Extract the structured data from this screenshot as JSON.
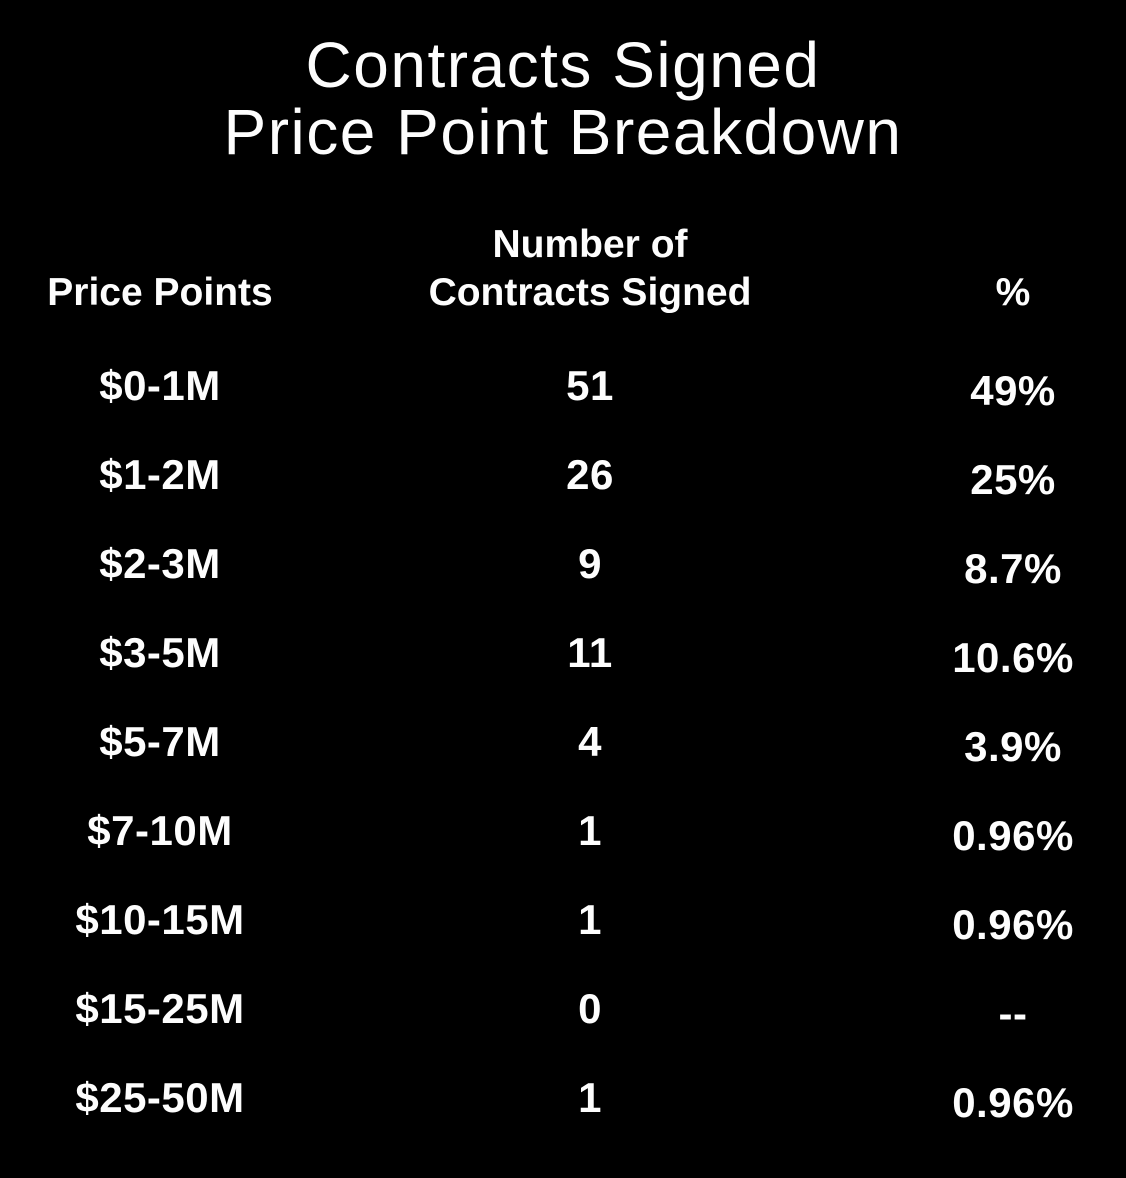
{
  "title": {
    "line1": "Contracts Signed",
    "line2": "Price Point Breakdown"
  },
  "table": {
    "header": {
      "price_points": "Price Points",
      "contracts_line1": "Number of",
      "contracts_line2": "Contracts Signed",
      "percent": "%"
    },
    "rows": [
      {
        "price_point": "$0-1M",
        "contracts": "51",
        "pct": "49%"
      },
      {
        "price_point": "$1-2M",
        "contracts": "26",
        "pct": "25%"
      },
      {
        "price_point": "$2-3M",
        "contracts": "9",
        "pct": "8.7%"
      },
      {
        "price_point": "$3-5M",
        "contracts": "11",
        "pct": "10.6%"
      },
      {
        "price_point": "$5-7M",
        "contracts": "4",
        "pct": "3.9%"
      },
      {
        "price_point": "$7-10M",
        "contracts": "1",
        "pct": "0.96%"
      },
      {
        "price_point": "$10-15M",
        "contracts": "1",
        "pct": "0.96%"
      },
      {
        "price_point": "$15-25M",
        "contracts": "0",
        "pct": "--"
      },
      {
        "price_point": "$25-50M",
        "contracts": "1",
        "pct": "0.96%"
      }
    ]
  },
  "colors": {
    "background": "#000000",
    "text": "#fdfdfd"
  },
  "chart_data": {
    "type": "table",
    "title": "Contracts Signed Price Point Breakdown",
    "columns": [
      "Price Points",
      "Number of Contracts Signed",
      "%"
    ],
    "categories": [
      "$0-1M",
      "$1-2M",
      "$2-3M",
      "$3-5M",
      "$5-7M",
      "$7-10M",
      "$10-15M",
      "$15-25M",
      "$25-50M"
    ],
    "values": [
      51,
      26,
      9,
      11,
      4,
      1,
      1,
      0,
      1
    ],
    "percent_labels": [
      "49%",
      "25%",
      "8.7%",
      "10.6%",
      "3.9%",
      "0.96%",
      "0.96%",
      "--",
      "0.96%"
    ]
  }
}
